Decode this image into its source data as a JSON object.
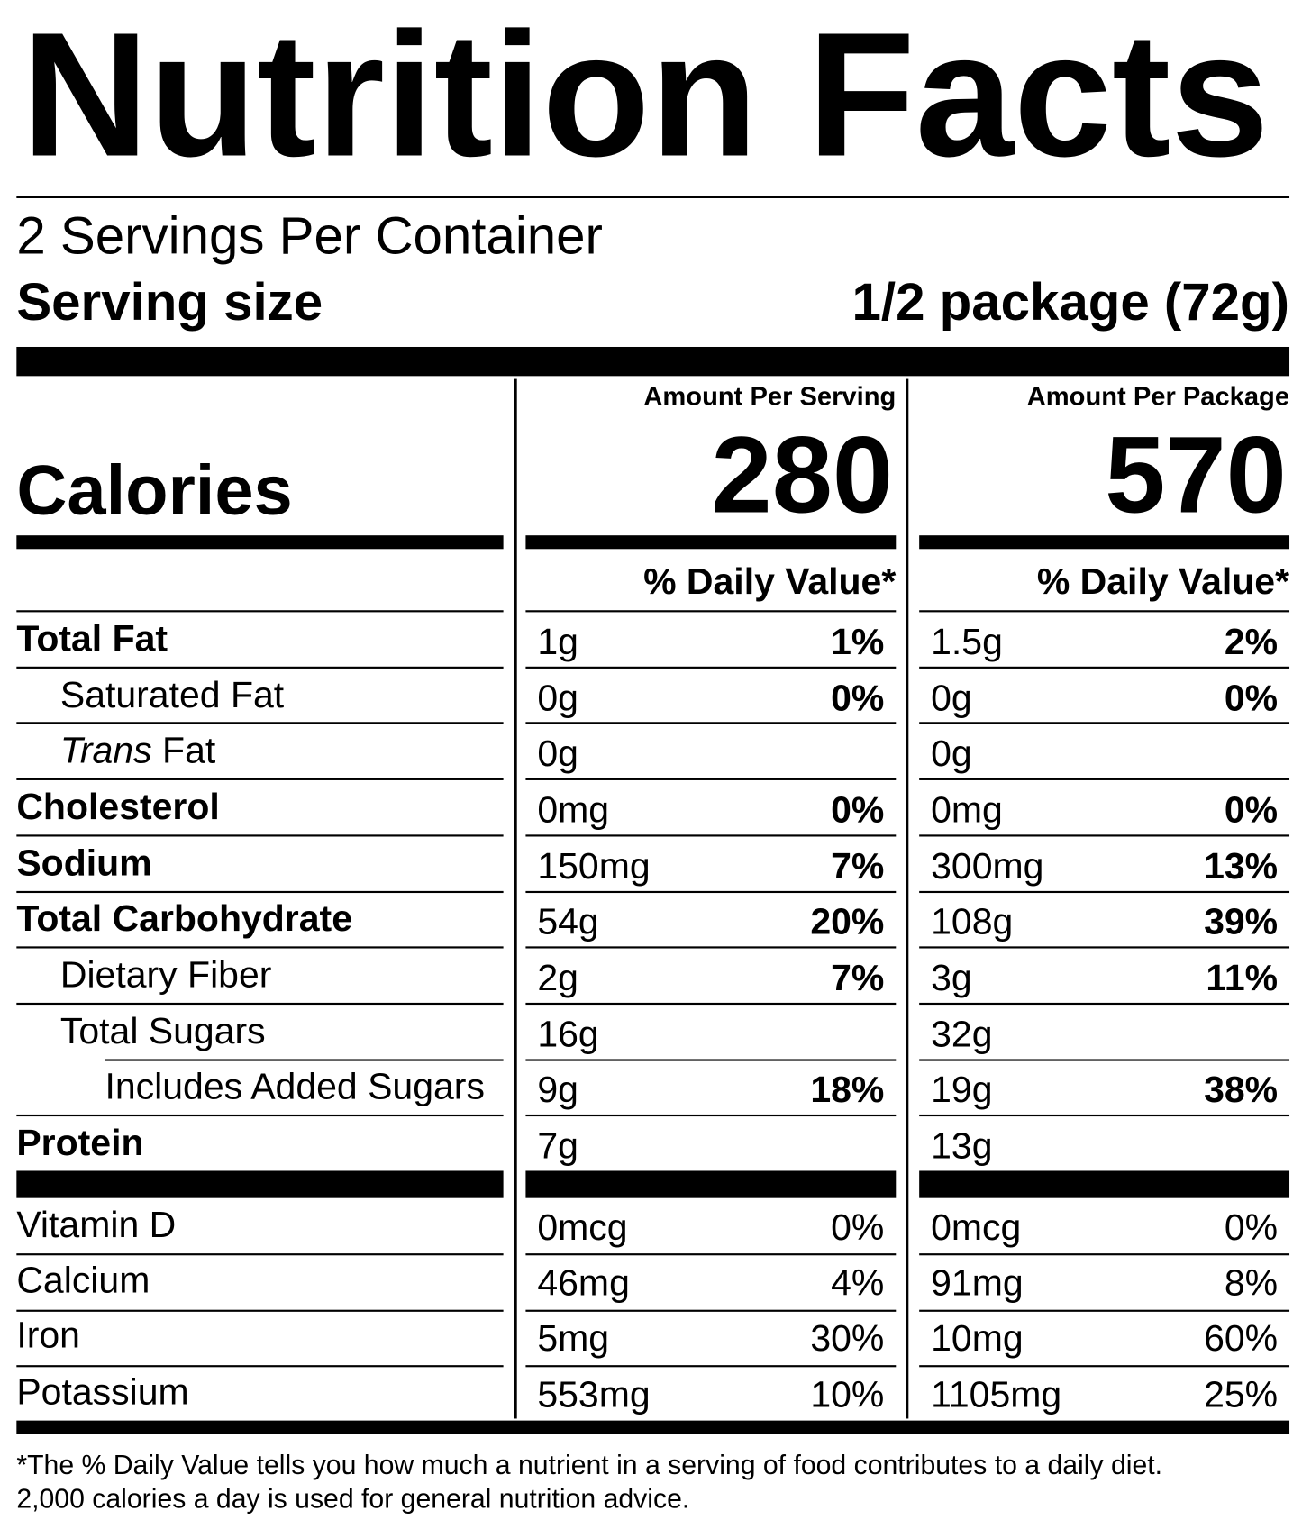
{
  "title": "Nutrition Facts",
  "servings": "2 Servings Per Container",
  "serving_size": {
    "label": "Serving size",
    "value": "1/2 package (72g)"
  },
  "calories_label": "Calories",
  "columns": [
    {
      "header": "Amount Per Serving",
      "calories": "280",
      "dv_header": "% Daily Value*"
    },
    {
      "header": "Amount Per Package",
      "calories": "570",
      "dv_header": "% Daily Value*"
    }
  ],
  "nutrients": [
    {
      "label": "Total Fat",
      "bold": true,
      "indent": 0,
      "values": [
        {
          "amount": "1g",
          "dv": "1%"
        },
        {
          "amount": "1.5g",
          "dv": "2%"
        }
      ]
    },
    {
      "label": "Saturated Fat",
      "bold": false,
      "indent": 1,
      "values": [
        {
          "amount": "0g",
          "dv": "0%"
        },
        {
          "amount": "0g",
          "dv": "0%"
        }
      ]
    },
    {
      "italic_prefix": "Trans",
      "label": "Fat",
      "bold": false,
      "indent": 1,
      "values": [
        {
          "amount": "0g"
        },
        {
          "amount": "0g"
        }
      ]
    },
    {
      "label": "Cholesterol",
      "bold": true,
      "indent": 0,
      "values": [
        {
          "amount": "0mg",
          "dv": "0%"
        },
        {
          "amount": "0mg",
          "dv": "0%"
        }
      ]
    },
    {
      "label": "Sodium",
      "bold": true,
      "indent": 0,
      "values": [
        {
          "amount": "150mg",
          "dv": "7%"
        },
        {
          "amount": "300mg",
          "dv": "13%"
        }
      ]
    },
    {
      "label": "Total Carbohydrate",
      "bold": true,
      "indent": 0,
      "values": [
        {
          "amount": "54g",
          "dv": "20%"
        },
        {
          "amount": "108g",
          "dv": "39%"
        }
      ]
    },
    {
      "label": "Dietary Fiber",
      "bold": false,
      "indent": 1,
      "values": [
        {
          "amount": "2g",
          "dv": "7%"
        },
        {
          "amount": "3g",
          "dv": "11%"
        }
      ]
    },
    {
      "label": "Total Sugars",
      "bold": false,
      "indent": 1,
      "values": [
        {
          "amount": "16g"
        },
        {
          "amount": "32g"
        }
      ]
    },
    {
      "label": "Includes Added Sugars",
      "bold": false,
      "indent": 2,
      "values": [
        {
          "amount": "9g",
          "dv": "18%"
        },
        {
          "amount": "19g",
          "dv": "38%"
        }
      ]
    },
    {
      "label": "Protein",
      "bold": true,
      "indent": 0,
      "values": [
        {
          "amount": "7g"
        },
        {
          "amount": "13g"
        }
      ]
    }
  ],
  "vitamins": [
    {
      "label": "Vitamin D",
      "values": [
        {
          "amount": "0mcg",
          "dv": "0%"
        },
        {
          "amount": "0mcg",
          "dv": "0%"
        }
      ]
    },
    {
      "label": "Calcium",
      "values": [
        {
          "amount": "46mg",
          "dv": "4%"
        },
        {
          "amount": "91mg",
          "dv": "8%"
        }
      ]
    },
    {
      "label": "Iron",
      "values": [
        {
          "amount": "5mg",
          "dv": "30%"
        },
        {
          "amount": "10mg",
          "dv": "60%"
        }
      ]
    },
    {
      "label": "Potassium",
      "values": [
        {
          "amount": "553mg",
          "dv": "10%"
        },
        {
          "amount": "1105mg",
          "dv": "25%"
        }
      ]
    }
  ],
  "footnote": [
    "*The % Daily Value tells you how much a nutrient in a serving of food contributes to a daily diet.",
    "2,000 calories a day is used for general nutrition advice."
  ]
}
